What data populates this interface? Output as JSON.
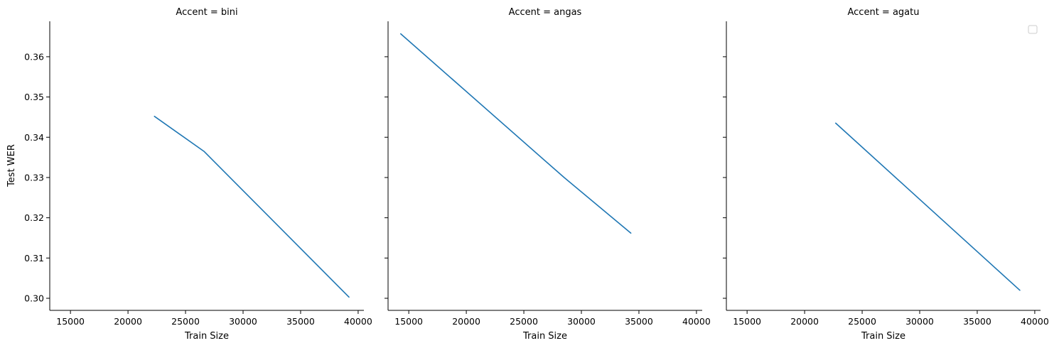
{
  "chart_data": [
    {
      "type": "line",
      "title": "Accent = bini",
      "xlabel": "Train Size",
      "ylabel": "Test WER",
      "xlim": [
        13200,
        40500
      ],
      "ylim": [
        0.297,
        0.3688
      ],
      "xticks": [
        15000,
        20000,
        25000,
        30000,
        35000,
        40000
      ],
      "yticks": [
        0.3,
        0.31,
        0.32,
        0.33,
        0.34,
        0.35,
        0.36
      ],
      "series": [
        {
          "x": [
            22300,
            26600,
            39200
          ],
          "y": [
            0.3452,
            0.3365,
            0.3003
          ]
        }
      ]
    },
    {
      "type": "line",
      "title": "Accent = angas",
      "xlabel": "Train Size",
      "ylabel": "",
      "xlim": [
        13200,
        40500
      ],
      "ylim": [
        0.297,
        0.3688
      ],
      "xticks": [
        15000,
        20000,
        25000,
        30000,
        35000,
        40000
      ],
      "yticks": [
        0.3,
        0.31,
        0.32,
        0.33,
        0.34,
        0.35,
        0.36
      ],
      "series": [
        {
          "x": [
            14300,
            28500,
            34300
          ],
          "y": [
            0.3657,
            0.33,
            0.3162
          ]
        }
      ]
    },
    {
      "type": "line",
      "title": "Accent = agatu",
      "xlabel": "Train Size",
      "ylabel": "",
      "xlim": [
        13200,
        40500
      ],
      "ylim": [
        0.297,
        0.3688
      ],
      "xticks": [
        15000,
        20000,
        25000,
        30000,
        35000,
        40000
      ],
      "yticks": [
        0.3,
        0.31,
        0.32,
        0.33,
        0.34,
        0.35,
        0.36
      ],
      "legend": "top-right",
      "series": [
        {
          "x": [
            22700,
            38700
          ],
          "y": [
            0.3435,
            0.302
          ]
        }
      ]
    }
  ],
  "colors": {
    "line": "#1f77b4"
  }
}
